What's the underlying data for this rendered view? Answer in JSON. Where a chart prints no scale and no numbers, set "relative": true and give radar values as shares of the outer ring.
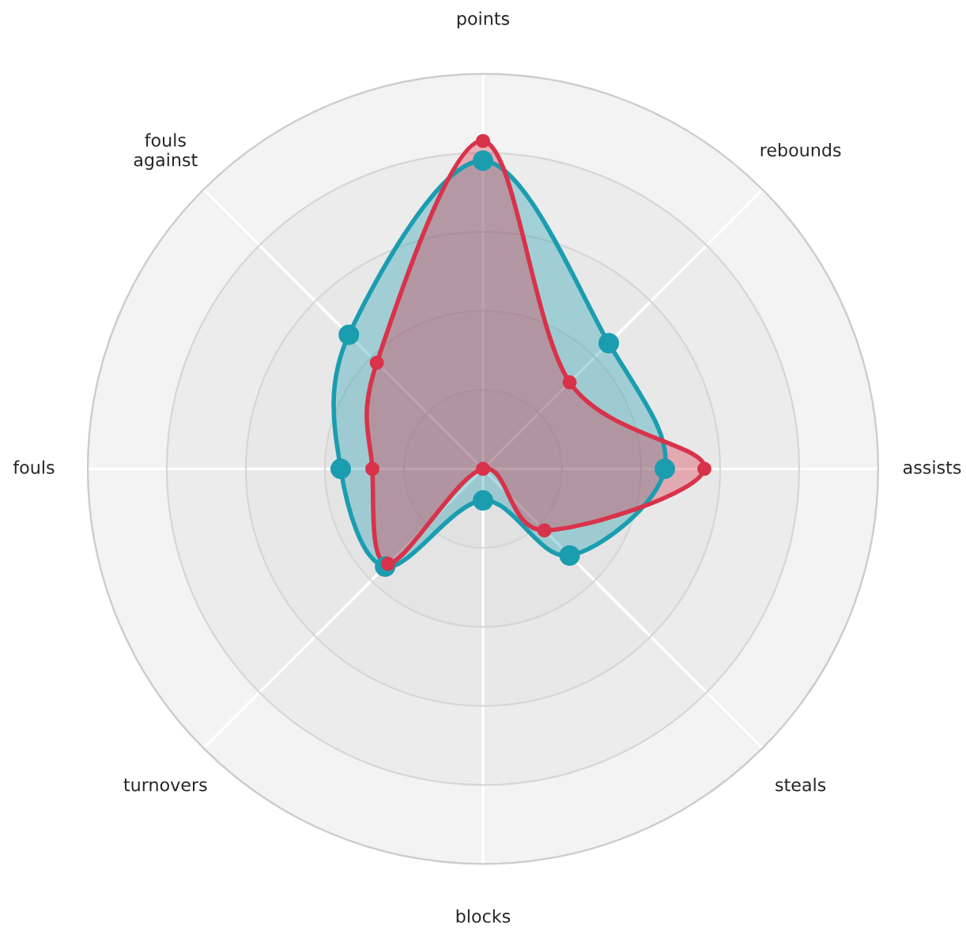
{
  "chart_data": {
    "type": "radar",
    "relative": true,
    "grid": true,
    "marker": "circle",
    "line_style": "solid",
    "categories": [
      "points",
      "rebounds",
      "assists",
      "steals",
      "blocks",
      "turnovers",
      "fouls",
      "fouls\nagainst"
    ],
    "series": [
      {
        "color": "#1b9db0",
        "values": [
          0.78,
          0.45,
          0.46,
          0.31,
          0.08,
          0.35,
          0.36,
          0.48
        ]
      },
      {
        "color": "#d8334a",
        "values": [
          0.83,
          0.31,
          0.56,
          0.22,
          0.0,
          0.34,
          0.28,
          0.38
        ]
      }
    ]
  }
}
